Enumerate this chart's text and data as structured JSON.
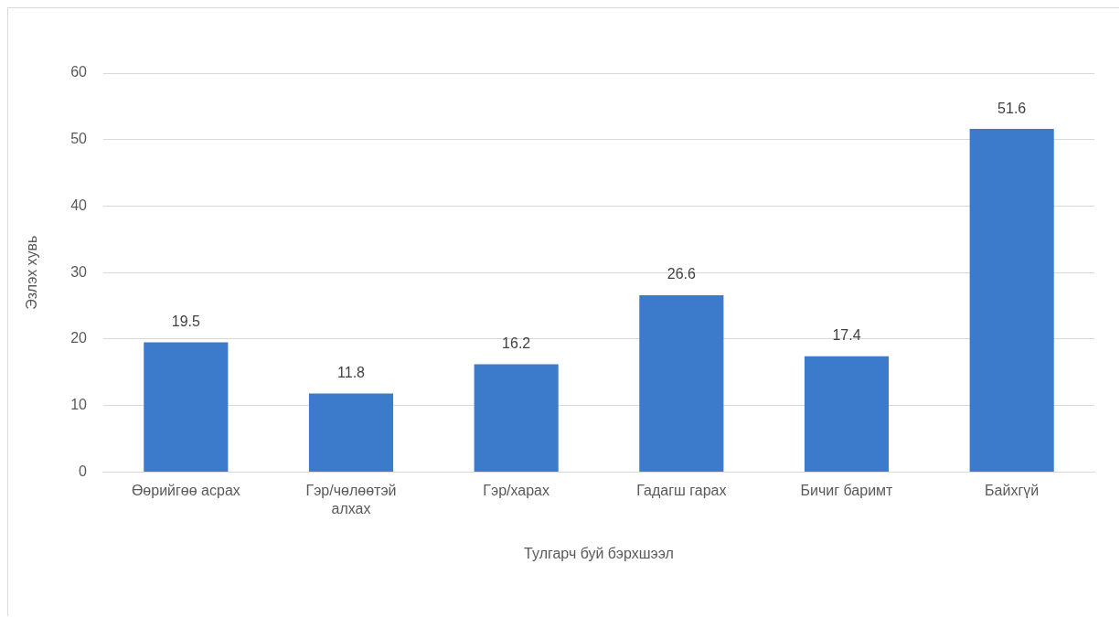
{
  "chart_data": {
    "type": "bar",
    "xlabel": "Тулгарч буй бэрхшээл",
    "ylabel": "Эзлэх хувь",
    "categories": [
      "Өөрийгөө асрах",
      "Гэр/чөлөөтэй алхах",
      "Гэр/харах",
      "Гадагш гарах",
      "Бичиг баримт",
      "Байхгүй"
    ],
    "values": [
      19.5,
      11.8,
      16.2,
      26.6,
      17.4,
      51.6
    ],
    "color": "#3c7bcb",
    "ylim": [
      0,
      60
    ],
    "yticks": [
      0,
      10,
      20,
      30,
      40,
      50,
      60
    ],
    "grid": "y",
    "data_labels": true,
    "legend": false
  }
}
